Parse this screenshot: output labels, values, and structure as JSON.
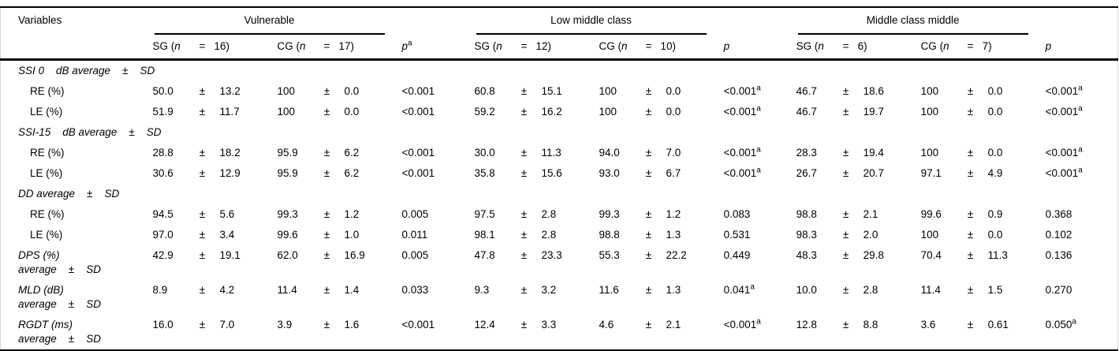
{
  "table": {
    "pm": "±",
    "header": {
      "variables": "Variables",
      "groups": [
        {
          "title": "Vulnerable",
          "sg": {
            "pre": "SG (",
            "n": "n",
            "eq": "=",
            "count": "16)"
          },
          "cg": {
            "pre": "CG (",
            "n": "n",
            "eq": "=",
            "count": "17)"
          },
          "p": "p",
          "p_sup": "a"
        },
        {
          "title": "Low middle class",
          "sg": {
            "pre": "SG (",
            "n": "n",
            "eq": "=",
            "count": "12)"
          },
          "cg": {
            "pre": "CG (",
            "n": "n",
            "eq": "=",
            "count": "10)"
          },
          "p": "p",
          "p_sup": ""
        },
        {
          "title": "Middle class middle",
          "sg": {
            "pre": "SG (",
            "n": "n",
            "eq": "=",
            "count": "6)"
          },
          "cg": {
            "pre": "CG (",
            "n": "n",
            "eq": "=",
            "count": "7)"
          },
          "p": "p",
          "p_sup": ""
        }
      ]
    },
    "rows": [
      {
        "type": "section",
        "label": "SSI 0    dB average    ±    SD"
      },
      {
        "type": "data",
        "label": "RE (%)",
        "label2": "",
        "indent": true,
        "italic": false,
        "groups": [
          {
            "sg_val": "50.0",
            "sg_sd": "13.2",
            "cg_val": "100",
            "cg_sd": "0.0",
            "p": "<0.001",
            "p_sup": ""
          },
          {
            "sg_val": "60.8",
            "sg_sd": "15.1",
            "cg_val": "100",
            "cg_sd": "0.0",
            "p": "<0.001",
            "p_sup": "a"
          },
          {
            "sg_val": "46.7",
            "sg_sd": "18.6",
            "cg_val": "100",
            "cg_sd": "0.0",
            "p": "<0.001",
            "p_sup": "a"
          }
        ]
      },
      {
        "type": "data",
        "label": "LE (%)",
        "label2": "",
        "indent": true,
        "italic": false,
        "groups": [
          {
            "sg_val": "51.9",
            "sg_sd": "11.7",
            "cg_val": "100",
            "cg_sd": "0.0",
            "p": "<0.001",
            "p_sup": ""
          },
          {
            "sg_val": "59.2",
            "sg_sd": "16.2",
            "cg_val": "100",
            "cg_sd": "0.0",
            "p": "<0.001",
            "p_sup": "a"
          },
          {
            "sg_val": "46.7",
            "sg_sd": "19.7",
            "cg_val": "100",
            "cg_sd": "0.0",
            "p": "<0.001",
            "p_sup": "a"
          }
        ]
      },
      {
        "type": "section",
        "label": "SSI-15    dB average    ±    SD"
      },
      {
        "type": "data",
        "label": "RE (%)",
        "label2": "",
        "indent": true,
        "italic": false,
        "groups": [
          {
            "sg_val": "28.8",
            "sg_sd": "18.2",
            "cg_val": "95.9",
            "cg_sd": "6.2",
            "p": "<0.001",
            "p_sup": ""
          },
          {
            "sg_val": "30.0",
            "sg_sd": "11.3",
            "cg_val": "94.0",
            "cg_sd": "7.0",
            "p": "<0.001",
            "p_sup": "a"
          },
          {
            "sg_val": "28.3",
            "sg_sd": "19.4",
            "cg_val": "100",
            "cg_sd": "0.0",
            "p": "<0.001",
            "p_sup": "a"
          }
        ]
      },
      {
        "type": "data",
        "label": "LE (%)",
        "label2": "",
        "indent": true,
        "italic": false,
        "groups": [
          {
            "sg_val": "30.6",
            "sg_sd": "12.9",
            "cg_val": "95.9",
            "cg_sd": "6.2",
            "p": "<0.001",
            "p_sup": ""
          },
          {
            "sg_val": "35.8",
            "sg_sd": "15.6",
            "cg_val": "93.0",
            "cg_sd": "6.7",
            "p": "<0.001",
            "p_sup": "a"
          },
          {
            "sg_val": "26.7",
            "sg_sd": "20.7",
            "cg_val": "97.1",
            "cg_sd": "4.9",
            "p": "<0.001",
            "p_sup": "a"
          }
        ]
      },
      {
        "type": "section",
        "label": "DD average    ±    SD"
      },
      {
        "type": "data",
        "label": "RE (%)",
        "label2": "",
        "indent": true,
        "italic": false,
        "groups": [
          {
            "sg_val": "94.5",
            "sg_sd": "5.6",
            "cg_val": "99.3",
            "cg_sd": "1.2",
            "p": "0.005",
            "p_sup": ""
          },
          {
            "sg_val": "97.5",
            "sg_sd": "2.8",
            "cg_val": "99.3",
            "cg_sd": "1.2",
            "p": "0.083",
            "p_sup": ""
          },
          {
            "sg_val": "98.8",
            "sg_sd": "2.1",
            "cg_val": "99.6",
            "cg_sd": "0.9",
            "p": "0.368",
            "p_sup": ""
          }
        ]
      },
      {
        "type": "data",
        "label": "LE (%)",
        "label2": "",
        "indent": true,
        "italic": false,
        "groups": [
          {
            "sg_val": "97.0",
            "sg_sd": "3.4",
            "cg_val": "99.6",
            "cg_sd": "1.0",
            "p": "0.011",
            "p_sup": ""
          },
          {
            "sg_val": "98.1",
            "sg_sd": "2.8",
            "cg_val": "98.8",
            "cg_sd": "1.3",
            "p": "0.531",
            "p_sup": ""
          },
          {
            "sg_val": "98.3",
            "sg_sd": "2.0",
            "cg_val": "100",
            "cg_sd": "0.0",
            "p": "0.102",
            "p_sup": ""
          }
        ]
      },
      {
        "type": "data",
        "label": "DPS (%)",
        "label2": "average    ±    SD",
        "indent": false,
        "italic": true,
        "groups": [
          {
            "sg_val": "42.9",
            "sg_sd": "19.1",
            "cg_val": "62.0",
            "cg_sd": "16.9",
            "p": "0.005",
            "p_sup": ""
          },
          {
            "sg_val": "47.8",
            "sg_sd": "23.3",
            "cg_val": "55.3",
            "cg_sd": "22.2",
            "p": "0.449",
            "p_sup": ""
          },
          {
            "sg_val": "48.3",
            "sg_sd": "29.8",
            "cg_val": "70.4",
            "cg_sd": "11.3",
            "p": "0.136",
            "p_sup": ""
          }
        ]
      },
      {
        "type": "data",
        "label": "MLD (dB)",
        "label2": "average    ±    SD",
        "indent": false,
        "italic": true,
        "groups": [
          {
            "sg_val": "8.9",
            "sg_sd": "4.2",
            "cg_val": "11.4",
            "cg_sd": "1.4",
            "p": "0.033",
            "p_sup": ""
          },
          {
            "sg_val": "9.3",
            "sg_sd": "3.2",
            "cg_val": "11.6",
            "cg_sd": "1.3",
            "p": "0.041",
            "p_sup": "a"
          },
          {
            "sg_val": "10.0",
            "sg_sd": "2.8",
            "cg_val": "11.4",
            "cg_sd": "1.5",
            "p": "0.270",
            "p_sup": ""
          }
        ]
      },
      {
        "type": "data",
        "label": "RGDT (ms)",
        "label2": "average    ±    SD",
        "indent": false,
        "italic": true,
        "groups": [
          {
            "sg_val": "16.0",
            "sg_sd": "7.0",
            "cg_val": "3.9",
            "cg_sd": "1.6",
            "p": "<0.001",
            "p_sup": ""
          },
          {
            "sg_val": "12.4",
            "sg_sd": "3.3",
            "cg_val": "4.6",
            "cg_sd": "2.1",
            "p": "<0.001",
            "p_sup": "a"
          },
          {
            "sg_val": "12.8",
            "sg_sd": "8.8",
            "cg_val": "3.6",
            "cg_sd": "0.61",
            "p": "0.050",
            "p_sup": "a"
          }
        ]
      }
    ]
  }
}
